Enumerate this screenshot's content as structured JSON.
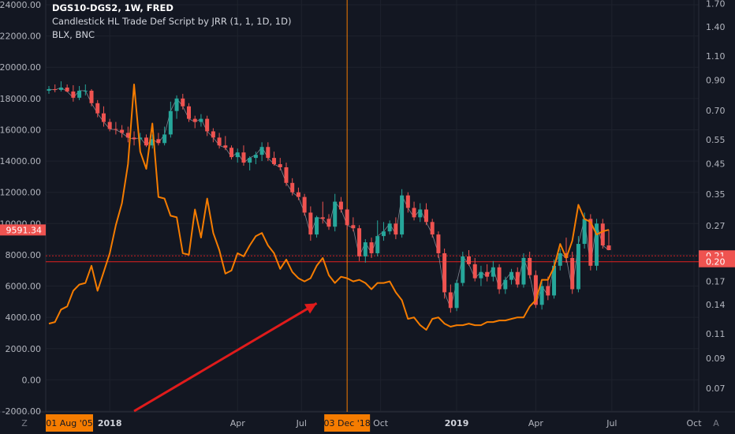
{
  "header": {
    "symbol_line": "DGS10-DGS2, 1W, FRED",
    "study_line": "Candlestick HL Trade Def Script by JRR (1, 1, 1D, 1D)",
    "overlay_line": "BLX, BNC"
  },
  "colors": {
    "background": "#131722",
    "grid": "#1e222d",
    "axis_text": "#b2b5be",
    "up_candle": "#26a69a",
    "down_candle": "#ef5350",
    "blx_line": "#f57c00",
    "crosshair": "#f57c00",
    "level_line": "#cc1f1f",
    "arrow": "#e01b1b",
    "date_badge": "#f57c00",
    "price_badge": "#ef5350"
  },
  "chart_data": {
    "type": "candlestick",
    "time_axis": {
      "ticks": [
        "2018",
        "Apr",
        "Jul",
        "Oct",
        "2019",
        "Apr",
        "Jul",
        "Oct"
      ],
      "left_badge": "01 Aug '05",
      "crosshair_badge": "03 Dec '18",
      "corner_left": "Z",
      "corner_right": "A"
    },
    "left_axis": {
      "ticks": [
        "-2000.00",
        "0.00",
        "2000.00",
        "4000.00",
        "6000.00",
        "8000.00",
        "10000.00",
        "12000.00",
        "14000.00",
        "16000.00",
        "18000.00",
        "20000.00",
        "22000.00",
        "24000.00"
      ],
      "range": [
        -2000,
        24000
      ],
      "current_badge": "9591.34",
      "current_value": 9591.34
    },
    "right_axis": {
      "ticks": [
        "0.07",
        "0.09",
        "0.11",
        "0.14",
        "0.17",
        "0.20",
        "0.21",
        "0.27",
        "0.35",
        "0.45",
        "0.55",
        "0.70",
        "0.90",
        "1.10",
        "1.40",
        "1.70"
      ],
      "scale": "log",
      "range": [
        0.058,
        1.75
      ],
      "badge_upper": "0.21",
      "badge_lower": "0.20",
      "level_dotted": 0.21,
      "level_solid": 0.2
    },
    "x_range": [
      0,
      92
    ],
    "crosshair_week": 49,
    "arrow": {
      "from": [
        14,
        -2500
      ],
      "to": [
        44,
        4900
      ]
    },
    "blx_series": {
      "name": "BLX",
      "points": [
        [
          0,
          3600
        ],
        [
          1,
          3700
        ],
        [
          2,
          4500
        ],
        [
          3,
          4700
        ],
        [
          4,
          5700
        ],
        [
          5,
          6100
        ],
        [
          6,
          6200
        ],
        [
          7,
          7300
        ],
        [
          8,
          5700
        ],
        [
          9,
          6900
        ],
        [
          10,
          8100
        ],
        [
          11,
          9900
        ],
        [
          12,
          11300
        ],
        [
          13,
          13800
        ],
        [
          14,
          18900
        ],
        [
          15,
          14600
        ],
        [
          16,
          13500
        ],
        [
          17,
          16400
        ],
        [
          18,
          11700
        ],
        [
          19,
          11600
        ],
        [
          20,
          10500
        ],
        [
          21,
          10400
        ],
        [
          22,
          8100
        ],
        [
          23,
          8000
        ],
        [
          24,
          10900
        ],
        [
          25,
          9100
        ],
        [
          26,
          11600
        ],
        [
          27,
          9400
        ],
        [
          28,
          8300
        ],
        [
          29,
          6800
        ],
        [
          30,
          7000
        ],
        [
          31,
          8100
        ],
        [
          32,
          7900
        ],
        [
          33,
          8600
        ],
        [
          34,
          9200
        ],
        [
          35,
          9400
        ],
        [
          36,
          8600
        ],
        [
          37,
          8100
        ],
        [
          38,
          7100
        ],
        [
          39,
          7700
        ],
        [
          40,
          6900
        ],
        [
          41,
          6500
        ],
        [
          42,
          6300
        ],
        [
          43,
          6500
        ],
        [
          44,
          7300
        ],
        [
          45,
          7800
        ],
        [
          46,
          6700
        ],
        [
          47,
          6200
        ],
        [
          48,
          6600
        ],
        [
          49,
          6500
        ],
        [
          50,
          6300
        ],
        [
          51,
          6400
        ],
        [
          52,
          6200
        ],
        [
          53,
          5800
        ],
        [
          54,
          6200
        ],
        [
          55,
          6200
        ],
        [
          56,
          6300
        ],
        [
          57,
          5600
        ],
        [
          58,
          5100
        ],
        [
          59,
          3900
        ],
        [
          60,
          4000
        ],
        [
          61,
          3500
        ],
        [
          62,
          3200
        ],
        [
          63,
          3900
        ],
        [
          64,
          4000
        ],
        [
          65,
          3600
        ],
        [
          66,
          3400
        ],
        [
          67,
          3500
        ],
        [
          68,
          3500
        ],
        [
          69,
          3600
        ],
        [
          70,
          3500
        ],
        [
          71,
          3500
        ],
        [
          72,
          3700
        ],
        [
          73,
          3700
        ],
        [
          74,
          3800
        ],
        [
          75,
          3800
        ],
        [
          76,
          3900
        ],
        [
          77,
          4000
        ],
        [
          78,
          4000
        ],
        [
          79,
          4700
        ],
        [
          80,
          5100
        ],
        [
          81,
          6400
        ],
        [
          82,
          6400
        ],
        [
          83,
          7200
        ],
        [
          84,
          8700
        ],
        [
          85,
          7800
        ],
        [
          86,
          8900
        ],
        [
          87,
          11200
        ],
        [
          88,
          10300
        ],
        [
          89,
          10100
        ],
        [
          90,
          9300
        ],
        [
          91,
          9500
        ],
        [
          92,
          9600
        ]
      ]
    },
    "candles": [
      [
        0,
        18500,
        18800,
        18300,
        18600
      ],
      [
        1,
        18600,
        18900,
        18400,
        18550
      ],
      [
        2,
        18550,
        19100,
        18450,
        18700
      ],
      [
        3,
        18700,
        18900,
        18400,
        18450
      ],
      [
        4,
        18450,
        18850,
        17800,
        18050
      ],
      [
        5,
        18050,
        18800,
        17900,
        18500
      ],
      [
        6,
        18500,
        18900,
        18200,
        18500
      ],
      [
        7,
        18500,
        18600,
        17500,
        17700
      ],
      [
        8,
        17700,
        17900,
        16800,
        17050
      ],
      [
        9,
        17050,
        17500,
        16200,
        16500
      ],
      [
        10,
        16500,
        16700,
        15900,
        16050
      ],
      [
        11,
        16050,
        16500,
        15700,
        16000
      ],
      [
        12,
        16000,
        16300,
        15500,
        15800
      ],
      [
        13,
        15800,
        16200,
        15200,
        15500
      ],
      [
        14,
        15500,
        15900,
        15000,
        15400
      ],
      [
        15,
        15400,
        15800,
        15000,
        15500
      ],
      [
        16,
        15500,
        15700,
        14900,
        15000
      ],
      [
        17,
        15000,
        15700,
        14800,
        15400
      ],
      [
        18,
        15400,
        15800,
        15000,
        15150
      ],
      [
        19,
        15150,
        16200,
        15000,
        15700
      ],
      [
        20,
        15700,
        17800,
        15500,
        17200
      ],
      [
        21,
        17200,
        18200,
        16700,
        18000
      ],
      [
        22,
        18000,
        18300,
        17300,
        17500
      ],
      [
        23,
        17500,
        17700,
        16500,
        16700
      ],
      [
        24,
        16700,
        16900,
        16100,
        16500
      ],
      [
        25,
        16500,
        17000,
        16200,
        16700
      ],
      [
        26,
        16700,
        16900,
        15600,
        15900
      ],
      [
        27,
        15900,
        16100,
        15200,
        15500
      ],
      [
        28,
        15500,
        15800,
        14800,
        15000
      ],
      [
        29,
        15000,
        15600,
        14700,
        14850
      ],
      [
        30,
        14850,
        15000,
        14100,
        14250
      ],
      [
        31,
        14250,
        14800,
        13900,
        14550
      ],
      [
        32,
        14550,
        15000,
        13700,
        13900
      ],
      [
        33,
        13900,
        14300,
        13400,
        14200
      ],
      [
        34,
        14200,
        14600,
        13800,
        14400
      ],
      [
        35,
        14400,
        15200,
        14000,
        14900
      ],
      [
        36,
        14900,
        15200,
        14000,
        14200
      ],
      [
        37,
        14200,
        14600,
        13700,
        13800
      ],
      [
        38,
        13800,
        14200,
        13400,
        13600
      ],
      [
        39,
        13600,
        13900,
        12400,
        12600
      ],
      [
        40,
        12600,
        12900,
        11800,
        12000
      ],
      [
        41,
        12000,
        12300,
        11500,
        11700
      ],
      [
        42,
        11700,
        11900,
        10500,
        10700
      ],
      [
        43,
        10700,
        11100,
        8900,
        9300
      ],
      [
        44,
        9300,
        10500,
        9100,
        10400
      ],
      [
        45,
        10400,
        11400,
        10000,
        10300
      ],
      [
        46,
        10300,
        10600,
        9600,
        9800
      ],
      [
        47,
        9800,
        11900,
        9500,
        11400
      ],
      [
        48,
        11400,
        11700,
        10700,
        10900
      ],
      [
        49,
        10900,
        11000,
        9600,
        9900
      ],
      [
        50,
        9900,
        10400,
        9500,
        9700
      ],
      [
        51,
        9700,
        9900,
        7600,
        7900
      ],
      [
        52,
        7900,
        9000,
        7500,
        8800
      ],
      [
        53,
        8800,
        9100,
        7800,
        8100
      ],
      [
        54,
        8100,
        10200,
        7900,
        9200
      ],
      [
        55,
        9200,
        10100,
        8900,
        9500
      ],
      [
        56,
        9500,
        10200,
        9300,
        10000
      ],
      [
        57,
        10000,
        10400,
        9000,
        9300
      ],
      [
        58,
        9300,
        12200,
        9100,
        11800
      ],
      [
        59,
        11800,
        12000,
        10700,
        11000
      ],
      [
        60,
        11000,
        11400,
        10200,
        10400
      ],
      [
        61,
        10400,
        11300,
        10100,
        10900
      ],
      [
        62,
        10900,
        11300,
        9900,
        10100
      ],
      [
        63,
        10100,
        10300,
        9100,
        9300
      ],
      [
        64,
        9300,
        9500,
        7800,
        8100
      ],
      [
        65,
        8100,
        8400,
        5200,
        5600
      ],
      [
        66,
        5600,
        6100,
        4300,
        4600
      ],
      [
        67,
        4600,
        6400,
        4400,
        6200
      ],
      [
        68,
        6200,
        8200,
        6000,
        7900
      ],
      [
        69,
        7900,
        8300,
        7300,
        7400
      ],
      [
        70,
        7400,
        7800,
        6300,
        6500
      ],
      [
        71,
        6500,
        7300,
        6000,
        6900
      ],
      [
        72,
        6900,
        7400,
        6300,
        6600
      ],
      [
        73,
        6600,
        7600,
        6300,
        7200
      ],
      [
        74,
        7200,
        7400,
        5500,
        5800
      ],
      [
        75,
        5800,
        6600,
        5500,
        6400
      ],
      [
        76,
        6400,
        7100,
        6100,
        6900
      ],
      [
        77,
        6900,
        7200,
        5900,
        6100
      ],
      [
        78,
        6100,
        8100,
        5900,
        7800
      ],
      [
        79,
        7800,
        8200,
        6500,
        6700
      ],
      [
        80,
        6700,
        7000,
        4600,
        4800
      ],
      [
        81,
        4800,
        6300,
        4500,
        6000
      ],
      [
        82,
        6000,
        6600,
        5100,
        5400
      ],
      [
        83,
        5400,
        7700,
        5200,
        7300
      ],
      [
        84,
        7300,
        8400,
        7000,
        8100
      ],
      [
        85,
        8100,
        9100,
        7500,
        7800
      ],
      [
        86,
        7800,
        8200,
        5500,
        5800
      ],
      [
        87,
        5800,
        9200,
        5600,
        8700
      ],
      [
        88,
        8700,
        10700,
        8400,
        10300
      ],
      [
        89,
        10300,
        10600,
        7000,
        7300
      ],
      [
        90,
        7300,
        10300,
        7000,
        10000
      ],
      [
        91,
        10000,
        10300,
        8400,
        8600
      ],
      [
        92,
        8600,
        9600,
        8300,
        8300
      ]
    ]
  }
}
